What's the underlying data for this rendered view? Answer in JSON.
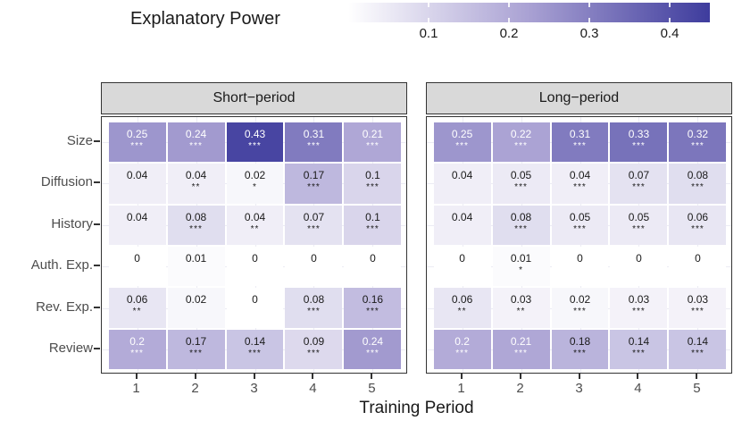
{
  "legend": {
    "title": "Explanatory Power",
    "tick_labels": [
      "0.1",
      "0.2",
      "0.3",
      "0.4"
    ],
    "tick_values": [
      0.1,
      0.2,
      0.3,
      0.4
    ]
  },
  "chart_data": {
    "type": "heatmap",
    "title": "",
    "xlabel": "Training Period",
    "ylabel": "",
    "x_categories": [
      "1",
      "2",
      "3",
      "4",
      "5"
    ],
    "y_categories": [
      "Size",
      "Diffusion",
      "History",
      "Auth. Exp.",
      "Rev. Exp.",
      "Review"
    ],
    "fill_label": "Explanatory Power",
    "fill_domain": [
      0,
      0.45
    ],
    "legend_position": "top",
    "facets": [
      {
        "label": "Short−period",
        "values": [
          [
            0.25,
            0.24,
            0.43,
            0.31,
            0.21
          ],
          [
            0.04,
            0.04,
            0.02,
            0.17,
            0.1
          ],
          [
            0.04,
            0.08,
            0.04,
            0.07,
            0.1
          ],
          [
            0,
            0.01,
            0,
            0,
            0
          ],
          [
            0.06,
            0.02,
            0,
            0.08,
            0.16
          ],
          [
            0.2,
            0.17,
            0.14,
            0.09,
            0.24
          ]
        ],
        "stars": [
          [
            "***",
            "***",
            "***",
            "***",
            "***"
          ],
          [
            "",
            "**",
            "*",
            "***",
            "***"
          ],
          [
            "",
            "***",
            "**",
            "***",
            "***"
          ],
          [
            "",
            "",
            "",
            "",
            ""
          ],
          [
            "**",
            "",
            "",
            "***",
            "***"
          ],
          [
            "***",
            "***",
            "***",
            "***",
            "***"
          ]
        ]
      },
      {
        "label": "Long−period",
        "values": [
          [
            0.25,
            0.22,
            0.31,
            0.33,
            0.32
          ],
          [
            0.04,
            0.05,
            0.04,
            0.07,
            0.08
          ],
          [
            0.04,
            0.08,
            0.05,
            0.05,
            0.06
          ],
          [
            0,
            0.01,
            0,
            0,
            0
          ],
          [
            0.06,
            0.03,
            0.02,
            0.03,
            0.03
          ],
          [
            0.2,
            0.21,
            0.18,
            0.14,
            0.14
          ]
        ],
        "stars": [
          [
            "***",
            "***",
            "***",
            "***",
            "***"
          ],
          [
            "",
            "***",
            "***",
            "***",
            "***"
          ],
          [
            "",
            "***",
            "***",
            "***",
            "***"
          ],
          [
            "",
            "*",
            "",
            "",
            ""
          ],
          [
            "**",
            "**",
            "***",
            "***",
            "***"
          ],
          [
            "***",
            "***",
            "***",
            "***",
            "***"
          ]
        ]
      }
    ]
  },
  "colors": {
    "scale_low": "#ffffff",
    "scale_mid": "#a9a1d3",
    "scale_high": "#3e3c9d",
    "strip_bg": "#d9d9d9",
    "border": "#333333",
    "axis_text": "#4d4d4d",
    "cell_text_dark": "#1a1a1a",
    "cell_text_light": "#ffffff",
    "grid": "#ececf4"
  }
}
